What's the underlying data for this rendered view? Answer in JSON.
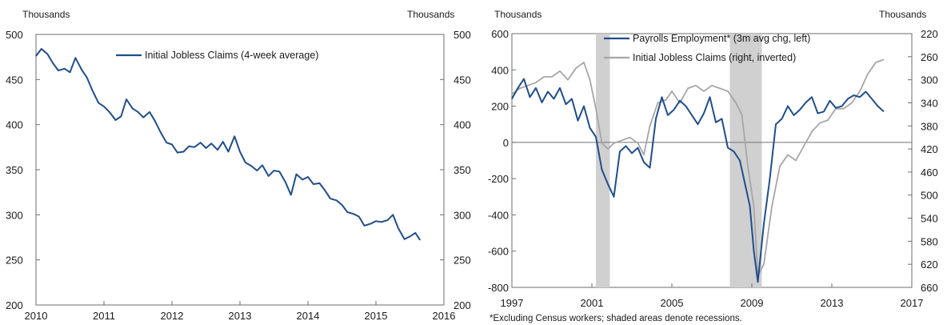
{
  "chart_data": [
    {
      "type": "line",
      "left_unit": "Thousands",
      "right_unit": "Thousands",
      "x_ticks": [
        "2010",
        "2011",
        "2012",
        "2013",
        "2014",
        "2015",
        "2016"
      ],
      "y_ticks": [
        "500",
        "450",
        "400",
        "350",
        "300",
        "250",
        "200"
      ],
      "xlim": [
        2010,
        2016
      ],
      "ylim": [
        200,
        500
      ],
      "grid": false,
      "legend_position": "top-center",
      "colors": {
        "series": "#1f4e8c",
        "axis": "#555555"
      },
      "series": [
        {
          "name": "Initial Jobless Claims (4-week average)",
          "x": [
            2010.0,
            2010.08,
            2010.17,
            2010.25,
            2010.33,
            2010.42,
            2010.5,
            2010.58,
            2010.67,
            2010.75,
            2010.83,
            2010.92,
            2011.0,
            2011.08,
            2011.17,
            2011.25,
            2011.33,
            2011.42,
            2011.5,
            2011.58,
            2011.67,
            2011.75,
            2011.83,
            2011.92,
            2012.0,
            2012.08,
            2012.17,
            2012.25,
            2012.33,
            2012.42,
            2012.5,
            2012.58,
            2012.67,
            2012.75,
            2012.83,
            2012.92,
            2013.0,
            2013.08,
            2013.17,
            2013.25,
            2013.33,
            2013.42,
            2013.5,
            2013.58,
            2013.67,
            2013.75,
            2013.83,
            2013.92,
            2014.0,
            2014.08,
            2014.17,
            2014.25,
            2014.33,
            2014.42,
            2014.5,
            2014.58,
            2014.67,
            2014.75,
            2014.83,
            2014.92,
            2015.0,
            2015.08,
            2015.17,
            2015.25,
            2015.33,
            2015.42,
            2015.5,
            2015.58,
            2015.65
          ],
          "values": [
            476,
            484,
            478,
            468,
            460,
            462,
            458,
            474,
            461,
            452,
            438,
            424,
            420,
            414,
            405,
            409,
            428,
            418,
            414,
            408,
            414,
            404,
            392,
            380,
            378,
            369,
            370,
            376,
            375,
            380,
            374,
            379,
            372,
            381,
            370,
            387,
            370,
            358,
            354,
            349,
            355,
            343,
            349,
            348,
            336,
            322,
            345,
            339,
            342,
            334,
            335,
            327,
            318,
            316,
            311,
            303,
            301,
            298,
            288,
            290,
            293,
            292,
            294,
            300,
            285,
            273,
            276,
            280,
            272
          ]
        }
      ]
    },
    {
      "type": "line",
      "left_unit": "Thousands",
      "right_unit": "Thousands",
      "x_ticks": [
        "1997",
        "2001",
        "2005",
        "2009",
        "2013",
        "2017"
      ],
      "y_left_ticks": [
        "600",
        "400",
        "200",
        "0",
        "-200",
        "-400",
        "-600",
        "-800"
      ],
      "y_right_ticks": [
        "220",
        "260",
        "300",
        "340",
        "380",
        "420",
        "460",
        "500",
        "540",
        "580",
        "620",
        "660"
      ],
      "xlim": [
        1997,
        2017
      ],
      "ylim_left": [
        -800,
        600
      ],
      "ylim_right_inverted": [
        220,
        660
      ],
      "recessions": [
        [
          2001.2,
          2001.9
        ],
        [
          2007.9,
          2009.5
        ]
      ],
      "grid": false,
      "legend_position": "top-center",
      "colors": {
        "payrolls": "#1f4e8c",
        "claims": "#a6a6a6",
        "recession": "#d0d0d0",
        "zero_line": "#707070"
      },
      "footnote": "*Excluding Census workers; shaded areas denote recessions.",
      "series": [
        {
          "name": "Payrolls Employment* (3m avg chg, left)",
          "axis": "left",
          "x": [
            1997.0,
            1997.3,
            1997.6,
            1997.9,
            1998.2,
            1998.5,
            1998.8,
            1999.1,
            1999.4,
            1999.7,
            2000.0,
            2000.3,
            2000.6,
            2000.9,
            2001.2,
            2001.5,
            2001.8,
            2002.1,
            2002.4,
            2002.7,
            2003.0,
            2003.3,
            2003.6,
            2003.9,
            2004.2,
            2004.5,
            2004.8,
            2005.1,
            2005.4,
            2005.7,
            2006.0,
            2006.3,
            2006.6,
            2006.9,
            2007.2,
            2007.5,
            2007.8,
            2008.1,
            2008.4,
            2008.7,
            2008.9,
            2009.1,
            2009.3,
            2009.6,
            2009.9,
            2010.2,
            2010.5,
            2010.8,
            2011.1,
            2011.4,
            2011.7,
            2012.0,
            2012.3,
            2012.6,
            2012.9,
            2013.2,
            2013.5,
            2013.8,
            2014.1,
            2014.4,
            2014.7,
            2015.0,
            2015.3,
            2015.6
          ],
          "values": [
            240,
            300,
            350,
            250,
            300,
            220,
            280,
            240,
            300,
            210,
            240,
            120,
            200,
            80,
            30,
            -150,
            -230,
            -300,
            -50,
            -20,
            -60,
            -30,
            -110,
            -140,
            130,
            250,
            150,
            180,
            230,
            200,
            150,
            100,
            160,
            250,
            110,
            130,
            -30,
            -50,
            -100,
            -250,
            -350,
            -600,
            -770,
            -450,
            -200,
            100,
            130,
            200,
            150,
            180,
            220,
            250,
            160,
            170,
            230,
            190,
            200,
            240,
            260,
            250,
            280,
            240,
            200,
            170
          ]
        },
        {
          "name": "Initial Jobless Claims (right, inverted)",
          "axis": "right",
          "x": [
            1997.0,
            1997.4,
            1997.8,
            1998.2,
            1998.6,
            1999.0,
            1999.4,
            1999.8,
            2000.2,
            2000.6,
            2000.9,
            2001.2,
            2001.5,
            2001.8,
            2002.1,
            2002.5,
            2002.9,
            2003.3,
            2003.6,
            2003.9,
            2004.3,
            2004.7,
            2005.0,
            2005.4,
            2005.8,
            2006.2,
            2006.6,
            2007.0,
            2007.4,
            2007.8,
            2008.2,
            2008.5,
            2008.8,
            2009.1,
            2009.3,
            2009.6,
            2010.0,
            2010.4,
            2010.8,
            2011.2,
            2011.6,
            2012.0,
            2012.4,
            2012.8,
            2013.2,
            2013.6,
            2014.0,
            2014.4,
            2014.8,
            2015.2,
            2015.6
          ],
          "values": [
            325,
            315,
            310,
            305,
            295,
            295,
            285,
            300,
            280,
            270,
            300,
            350,
            410,
            420,
            410,
            405,
            400,
            410,
            430,
            380,
            340,
            335,
            320,
            340,
            315,
            310,
            320,
            310,
            315,
            320,
            340,
            360,
            450,
            520,
            640,
            620,
            520,
            450,
            430,
            440,
            415,
            390,
            375,
            370,
            350,
            350,
            340,
            320,
            290,
            270,
            265
          ]
        }
      ]
    }
  ]
}
